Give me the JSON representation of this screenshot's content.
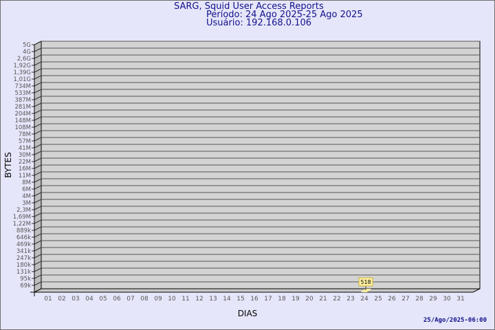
{
  "chart_data": {
    "type": "bar",
    "title": "SARG, Squid User Access Reports",
    "subtitle_period": "Período: 24 Ago 2025-25 Ago 2025",
    "subtitle_user": "Usuário: 192.168.0.106",
    "xlabel": "DIAS",
    "ylabel": "BYTES",
    "y_scale": "log",
    "y_tick_labels": [
      "5G",
      "4G",
      "2,6G",
      "1,92G",
      "1,39G",
      "1,01G",
      "734M",
      "533M",
      "387M",
      "281M",
      "204M",
      "148M",
      "108M",
      "78M",
      "57M",
      "41M",
      "30M",
      "22M",
      "16M",
      "11M",
      "8M",
      "6M",
      "4M",
      "3M",
      "2,3M",
      "1,69M",
      "1,22M",
      "889k",
      "646k",
      "469k",
      "341k",
      "247k",
      "180k",
      "131k",
      "95k",
      "69k"
    ],
    "categories": [
      "01",
      "02",
      "03",
      "04",
      "05",
      "06",
      "07",
      "08",
      "09",
      "10",
      "11",
      "12",
      "13",
      "14",
      "15",
      "16",
      "17",
      "18",
      "19",
      "20",
      "21",
      "22",
      "23",
      "24",
      "25",
      "26",
      "27",
      "28",
      "29",
      "30",
      "31"
    ],
    "points": [
      {
        "x": "24",
        "value": 518,
        "label": "518"
      }
    ],
    "grid": true,
    "style_3d": true,
    "colors": {
      "background": "#e6e6fa",
      "plot": "#d3d3d3",
      "bar": "#fff0a0",
      "text": "#10108a",
      "ticks": "#555555"
    }
  },
  "footer": {
    "timestamp": "25/Ago/2025-06:00"
  }
}
